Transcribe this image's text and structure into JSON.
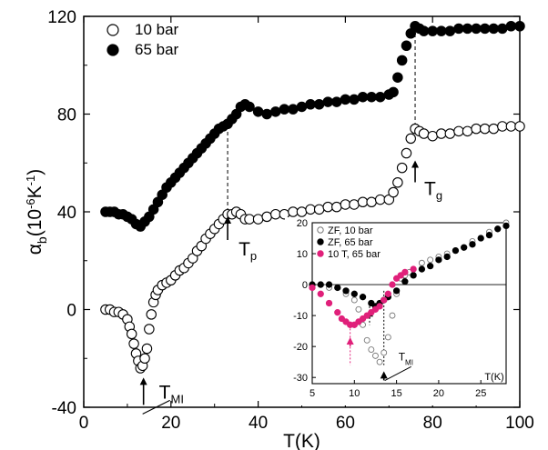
{
  "chart_data": [
    {
      "type": "scatter",
      "xlabel": "T(K)",
      "ylabel": {
        "base": "α",
        "sub": "b",
        "unit_open": "(10",
        "exp": "-6",
        "unit_mid": "K",
        "exp2": "-1",
        "unit_close": ")"
      },
      "xlim": [
        0,
        100
      ],
      "ylim": [
        -40,
        120
      ],
      "x_ticks": [
        "0",
        "20",
        "40",
        "60",
        "80",
        "100"
      ],
      "y_ticks": [
        "-40",
        "0",
        "40",
        "80",
        "120"
      ],
      "legend_position": "top-left",
      "series": [
        {
          "name": "10 bar",
          "marker": "open-circle",
          "color": "#000000",
          "x": [
            5,
            6,
            7,
            8,
            9,
            10,
            10.5,
            11,
            11.5,
            12,
            12.5,
            13,
            13.5,
            14,
            14.5,
            15,
            15.5,
            16,
            16.5,
            17,
            18,
            19,
            20,
            21,
            22,
            23,
            24,
            25,
            26,
            27,
            28,
            29,
            30,
            31,
            32,
            33,
            34,
            35,
            36,
            37,
            38,
            40,
            42,
            44,
            46,
            48,
            50,
            52,
            54,
            56,
            58,
            60,
            62,
            64,
            66,
            68,
            70,
            71,
            72,
            73,
            74,
            75,
            76,
            77,
            78,
            80,
            82,
            84,
            86,
            88,
            90,
            92,
            94,
            96,
            98,
            100
          ],
          "y": [
            0,
            0,
            -1,
            -1,
            -2,
            -4,
            -7,
            -10,
            -14,
            -18,
            -21,
            -24,
            -23,
            -20,
            -16,
            -8,
            -2,
            3,
            6,
            8,
            10,
            11,
            12,
            14,
            16,
            17,
            19,
            21,
            24,
            26,
            29,
            31,
            33,
            35,
            37,
            39,
            39,
            40,
            39,
            37,
            37,
            37,
            38,
            39,
            39,
            40,
            40,
            41,
            41,
            42,
            42,
            43,
            43,
            44,
            44,
            45,
            45,
            48,
            52,
            58,
            64,
            70,
            74,
            73,
            72,
            71,
            72,
            72,
            73,
            73,
            74,
            74,
            74,
            75,
            75,
            75
          ]
        },
        {
          "name": "65 bar",
          "marker": "filled-circle",
          "color": "#000000",
          "x": [
            5,
            6,
            7,
            8,
            9,
            10,
            11,
            12,
            13,
            14,
            15,
            16,
            17,
            18,
            19,
            20,
            21,
            22,
            23,
            24,
            25,
            26,
            27,
            28,
            29,
            30,
            31,
            32,
            33,
            34,
            35,
            36,
            37,
            38,
            40,
            42,
            44,
            46,
            48,
            50,
            52,
            54,
            56,
            58,
            60,
            62,
            64,
            66,
            68,
            70,
            71,
            72,
            73,
            74,
            75,
            76,
            77,
            78,
            80,
            82,
            84,
            86,
            88,
            90,
            92,
            94,
            96,
            98,
            100
          ],
          "y": [
            40,
            40,
            40,
            39,
            39,
            38,
            37,
            35,
            34,
            36,
            38,
            41,
            44,
            47,
            50,
            52,
            54,
            56,
            58,
            60,
            62,
            64,
            66,
            68,
            70,
            72,
            74,
            75,
            76,
            78,
            80,
            83,
            84,
            83,
            81,
            80,
            81,
            82,
            82,
            83,
            84,
            84,
            85,
            85,
            86,
            86,
            87,
            87,
            87,
            88,
            89,
            95,
            102,
            108,
            113,
            116,
            115,
            114,
            114,
            114,
            114,
            115,
            115,
            115,
            115,
            115,
            115,
            116,
            116
          ]
        }
      ],
      "guides_x": [
        33,
        76
      ],
      "annotations": [
        {
          "base": "T",
          "sub": "p",
          "x": 33,
          "y": 40
        },
        {
          "base": "T",
          "sub": "g",
          "x": 76,
          "y": 64
        },
        {
          "base": "T",
          "sub": "MI",
          "x": 13.5,
          "y": -26
        }
      ]
    },
    {
      "type": "scatter",
      "inset": true,
      "xlabel": "T(K)",
      "xlim": [
        5,
        28
      ],
      "ylim": [
        -32,
        20
      ],
      "x_ticks": [
        "5",
        "10",
        "15",
        "20",
        "25"
      ],
      "y_ticks": [
        "-30",
        "-20",
        "-10",
        "0",
        "10",
        "20"
      ],
      "legend_position": "top-left",
      "series": [
        {
          "name": "ZF, 10 bar",
          "marker": "open-circle",
          "color": "#777777",
          "x": [
            5,
            6,
            7,
            8,
            9,
            10,
            10.5,
            11,
            11.5,
            12,
            12.5,
            13,
            13.5,
            14,
            14.5,
            15,
            15.5,
            16,
            16.5,
            17,
            18,
            19,
            20,
            21,
            22,
            23,
            24,
            25,
            26,
            27,
            28
          ],
          "y": [
            0,
            0,
            -1,
            -1,
            -3,
            -5,
            -8,
            -13,
            -18,
            -21,
            -23,
            -25,
            -22,
            -17,
            -10,
            -3,
            2,
            3,
            4,
            5,
            7,
            8,
            9,
            10,
            11,
            12,
            14,
            15,
            17,
            18,
            20
          ]
        },
        {
          "name": "ZF, 65 bar",
          "marker": "filled-circle",
          "color": "#000000",
          "x": [
            5,
            6,
            7,
            8,
            9,
            10,
            11,
            12,
            12.5,
            13,
            13.5,
            14,
            15,
            16,
            17,
            18,
            19,
            20,
            21,
            22,
            23,
            24,
            25,
            26,
            27,
            28
          ],
          "y": [
            0,
            0,
            0,
            -1,
            -2,
            -3,
            -4,
            -6,
            -7,
            -6,
            -5,
            -4,
            -2,
            1,
            3,
            5,
            6,
            8,
            9,
            11,
            12,
            13,
            15,
            16,
            18,
            19
          ]
        },
        {
          "name": "10 T, 65 bar",
          "marker": "filled-circle",
          "color": "#e0207a",
          "x": [
            5,
            6,
            7,
            8,
            8.5,
            9,
            9.5,
            10,
            10.5,
            11,
            11.5,
            12,
            12.5,
            13,
            13.5,
            14,
            14.5,
            15,
            15.5,
            16,
            17
          ],
          "y": [
            -1,
            -3,
            -6,
            -9,
            -11,
            -12,
            -13,
            -13,
            -12,
            -11,
            -10,
            -9,
            -8,
            -7,
            -5,
            -3,
            0,
            2,
            3,
            4,
            5
          ]
        }
      ],
      "guides_x": [
        9.5,
        11.8,
        13.5
      ],
      "annotations": [
        {
          "base": "T",
          "sub": "MI",
          "x": 13.5,
          "y": -29
        }
      ]
    }
  ]
}
